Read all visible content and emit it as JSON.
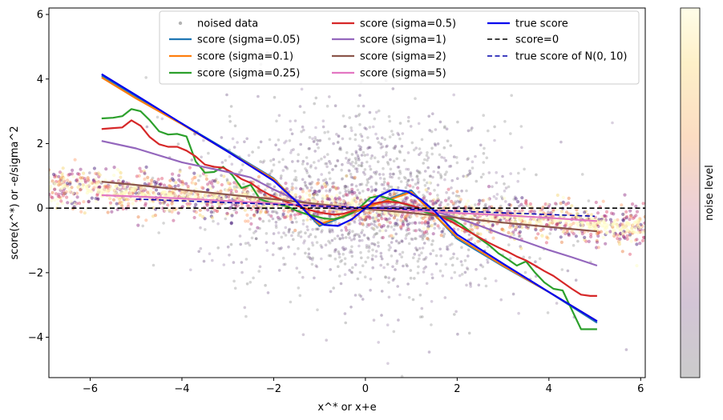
{
  "chart_data": {
    "type": "line",
    "title": "",
    "xlabel": "x^* or x+e",
    "ylabel": "score(x^*) or -e/sigma^2",
    "xlim": [
      -6.9,
      6.1
    ],
    "ylim": [
      -5.25,
      6.2
    ],
    "xticks": [
      -6,
      -4,
      -2,
      0,
      2,
      4,
      6
    ],
    "yticks": [
      -4,
      -2,
      0,
      2,
      4,
      6
    ],
    "xtick_labels": [
      "−6",
      "−4",
      "−2",
      "0",
      "2",
      "4",
      "6"
    ],
    "ytick_labels": [
      "−4",
      "−2",
      "0",
      "2",
      "4",
      "6"
    ],
    "colorbar": {
      "label": "noise level",
      "colormap": "inferno (faded)"
    },
    "scatter": {
      "name": "noised data",
      "color": "#808080",
      "description_free": true
    },
    "series": [
      {
        "name": "score (sigma=0.05)",
        "color": "#1f77b4",
        "dash": "solid",
        "x": [
          -5.75,
          -5.0,
          -4.0,
          -3.0,
          -2.0,
          -1.0,
          0.0,
          1.0,
          2.0,
          3.0,
          4.0,
          5.05
        ],
        "y": [
          4.1,
          3.45,
          2.62,
          1.78,
          0.92,
          -0.55,
          0.0,
          0.55,
          -0.95,
          -1.8,
          -2.6,
          -3.55
        ]
      },
      {
        "name": "score (sigma=0.1)",
        "color": "#ff7f0e",
        "dash": "solid",
        "x": [
          -5.75,
          -5.0,
          -4.0,
          -3.0,
          -2.0,
          -1.0,
          0.0,
          1.0,
          2.0,
          3.0,
          4.0,
          5.05
        ],
        "y": [
          4.05,
          3.4,
          2.6,
          1.75,
          0.9,
          -0.5,
          0.0,
          0.5,
          -0.9,
          -1.78,
          -2.6,
          -3.5
        ]
      },
      {
        "name": "score (sigma=0.25)",
        "color": "#2ca02c",
        "dash": "solid",
        "x": [
          -5.75,
          -5.5,
          -5.3,
          -5.1,
          -4.9,
          -4.7,
          -4.5,
          -4.3,
          -4.1,
          -3.9,
          -3.7,
          -3.5,
          -3.3,
          -3.1,
          -2.9,
          -2.7,
          -2.5,
          -2.3,
          -2.1,
          -1.9,
          -1.7,
          -1.5,
          -1.3,
          -1.1,
          -0.9,
          -0.7,
          -0.5,
          -0.3,
          -0.1,
          0.1,
          0.3,
          0.5,
          0.7,
          0.9,
          1.1,
          1.3,
          1.5,
          1.7,
          1.9,
          2.1,
          2.3,
          2.5,
          2.7,
          2.9,
          3.1,
          3.3,
          3.5,
          3.7,
          3.9,
          4.1,
          4.3,
          4.5,
          4.7,
          4.9,
          5.05
        ],
        "y": [
          2.78,
          2.8,
          2.85,
          3.07,
          3.0,
          2.72,
          2.38,
          2.28,
          2.3,
          2.22,
          1.45,
          1.1,
          1.12,
          1.28,
          1.02,
          0.62,
          0.72,
          0.28,
          0.18,
          0.12,
          0.05,
          -0.08,
          -0.18,
          -0.25,
          -0.32,
          -0.34,
          -0.28,
          -0.15,
          0.05,
          0.32,
          0.38,
          0.3,
          0.2,
          0.1,
          0.0,
          -0.12,
          -0.22,
          -0.28,
          -0.35,
          -0.52,
          -0.75,
          -0.95,
          -1.15,
          -1.4,
          -1.58,
          -1.78,
          -1.65,
          -2.0,
          -2.3,
          -2.5,
          -2.55,
          -3.15,
          -3.75,
          -3.75,
          -3.75
        ]
      },
      {
        "name": "score (sigma=0.5)",
        "color": "#d62728",
        "dash": "solid",
        "x": [
          -5.75,
          -5.5,
          -5.3,
          -5.1,
          -4.9,
          -4.7,
          -4.5,
          -4.3,
          -4.1,
          -3.9,
          -3.7,
          -3.5,
          -3.3,
          -3.1,
          -2.9,
          -2.7,
          -2.5,
          -2.3,
          -2.1,
          -1.9,
          -1.7,
          -1.5,
          -1.3,
          -1.1,
          -0.9,
          -0.7,
          -0.5,
          -0.3,
          -0.1,
          0.1,
          0.3,
          0.5,
          0.7,
          0.9,
          1.1,
          1.3,
          1.5,
          1.7,
          1.9,
          2.1,
          2.3,
          2.5,
          2.7,
          2.9,
          3.1,
          3.3,
          3.5,
          3.7,
          3.9,
          4.1,
          4.3,
          4.5,
          4.7,
          4.9,
          5.05
        ],
        "y": [
          2.45,
          2.48,
          2.5,
          2.72,
          2.55,
          2.2,
          1.98,
          1.9,
          1.9,
          1.78,
          1.6,
          1.35,
          1.28,
          1.25,
          1.1,
          0.9,
          0.78,
          0.58,
          0.42,
          0.3,
          0.18,
          0.08,
          -0.02,
          -0.1,
          -0.16,
          -0.2,
          -0.18,
          -0.1,
          0.02,
          0.12,
          0.18,
          0.2,
          0.18,
          0.12,
          0.04,
          -0.06,
          -0.18,
          -0.3,
          -0.44,
          -0.6,
          -0.76,
          -0.92,
          -1.08,
          -1.22,
          -1.35,
          -1.5,
          -1.62,
          -1.78,
          -1.95,
          -2.1,
          -2.3,
          -2.5,
          -2.68,
          -2.72,
          -2.72
        ]
      },
      {
        "name": "score (sigma=1)",
        "color": "#9467bd",
        "dash": "solid",
        "x": [
          -5.75,
          -5.0,
          -4.0,
          -3.0,
          -2.5,
          -2.0,
          -1.5,
          -1.0,
          -0.5,
          0.0,
          0.5,
          1.0,
          1.5,
          2.0,
          2.5,
          3.0,
          3.5,
          4.0,
          4.5,
          5.05
        ],
        "y": [
          2.08,
          1.85,
          1.42,
          1.12,
          0.95,
          0.58,
          0.25,
          0.05,
          -0.05,
          0.0,
          0.05,
          0.02,
          -0.1,
          -0.3,
          -0.55,
          -0.82,
          -1.05,
          -1.3,
          -1.52,
          -1.78
        ]
      },
      {
        "name": "score (sigma=2)",
        "color": "#8c564b",
        "dash": "solid",
        "x": [
          -5.75,
          -5.0,
          -4.0,
          -3.0,
          -2.0,
          -1.0,
          0.0,
          1.0,
          2.0,
          3.0,
          4.0,
          5.05
        ],
        "y": [
          0.82,
          0.72,
          0.57,
          0.42,
          0.28,
          0.12,
          -0.02,
          -0.15,
          -0.3,
          -0.45,
          -0.58,
          -0.72
        ]
      },
      {
        "name": "score (sigma=5)",
        "color": "#e377c2",
        "dash": "solid",
        "x": [
          -5.75,
          -5.0,
          -4.0,
          -3.0,
          -2.0,
          -1.0,
          0.0,
          1.0,
          2.0,
          3.0,
          4.0,
          5.05
        ],
        "y": [
          0.4,
          0.36,
          0.3,
          0.22,
          0.15,
          0.07,
          0.0,
          -0.07,
          -0.15,
          -0.22,
          -0.3,
          -0.4
        ]
      },
      {
        "name": "true score",
        "color": "#0000ee",
        "dash": "solid",
        "x": [
          -5.75,
          -5.0,
          -4.0,
          -3.0,
          -2.0,
          -1.5,
          -1.2,
          -0.9,
          -0.6,
          -0.3,
          0.0,
          0.3,
          0.6,
          0.9,
          1.2,
          1.5,
          2.0,
          3.0,
          4.0,
          5.05
        ],
        "y": [
          4.15,
          3.5,
          2.62,
          1.75,
          0.85,
          0.2,
          -0.25,
          -0.52,
          -0.55,
          -0.35,
          0.0,
          0.38,
          0.58,
          0.52,
          0.28,
          -0.08,
          -0.82,
          -1.72,
          -2.6,
          -3.5
        ]
      },
      {
        "name": "score=0",
        "color": "#000000",
        "dash": "dashed",
        "x": [
          -6.9,
          6.1
        ],
        "y": [
          0,
          0
        ]
      },
      {
        "name": "true score of N(0, 10)",
        "color": "#0000aa",
        "dash": "dashed",
        "x": [
          -5.0,
          5.0
        ],
        "y": [
          0.28,
          -0.25
        ]
      }
    ],
    "legend": {
      "position": "top-center",
      "entries": [
        "noised data",
        "score (sigma=0.05)",
        "score (sigma=0.1)",
        "score (sigma=0.25)",
        "score (sigma=0.5)",
        "score (sigma=1)",
        "score (sigma=2)",
        "score (sigma=5)",
        "true score",
        "score=0",
        "true score of N(0, 10)"
      ]
    }
  }
}
